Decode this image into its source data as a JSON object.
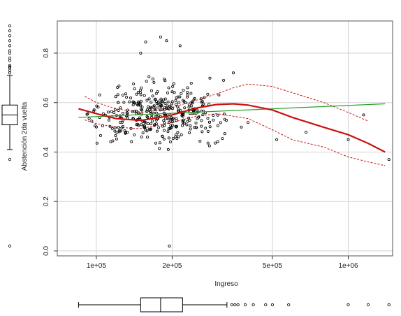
{
  "chart_data": {
    "type": "scatter",
    "title": "",
    "xlabel": "Ingreso",
    "ylabel": "Abstención 2da vuelta",
    "x_scale": "log",
    "xlim": [
      70000,
      1500000
    ],
    "ylim": [
      -0.02,
      0.93
    ],
    "x_ticks": [
      100000,
      200000,
      500000,
      1000000
    ],
    "x_tick_labels": [
      "1e+05",
      "2e+05",
      "5e+05",
      "1e+06"
    ],
    "y_ticks": [
      0.0,
      0.2,
      0.4,
      0.6,
      0.8
    ],
    "y_tick_labels": [
      "0.0",
      "0.2",
      "0.4",
      "0.6",
      "0.8"
    ],
    "grid": true,
    "colors": {
      "points": "#000000",
      "linear_fit": "#2ca02c",
      "smooth_fit": "#cc1111",
      "smooth_band": "#cc1111",
      "grid": "#d3d3d3"
    },
    "series": [
      {
        "type": "line",
        "x": [
          85000,
          1400000
        ],
        "y": [
          0.54,
          0.595
        ]
      },
      {
        "type": "line",
        "x": [
          85000,
          100000,
          120000,
          150000,
          180000,
          200000,
          250000,
          300000,
          350000,
          400000,
          500000,
          600000,
          800000,
          1000000,
          1200000,
          1400000
        ],
        "y": [
          0.575,
          0.555,
          0.535,
          0.528,
          0.54,
          0.55,
          0.578,
          0.592,
          0.595,
          0.59,
          0.57,
          0.54,
          0.5,
          0.47,
          0.435,
          0.4
        ]
      },
      {
        "type": "line",
        "x": [
          90000,
          100000,
          120000,
          150000,
          180000,
          200000,
          250000,
          300000,
          350000,
          400000,
          500000,
          600000,
          800000,
          1000000,
          1200000
        ],
        "y": [
          0.625,
          0.6,
          0.575,
          0.56,
          0.57,
          0.58,
          0.61,
          0.635,
          0.66,
          0.675,
          0.665,
          0.64,
          0.6,
          0.56,
          0.525
        ]
      },
      {
        "type": "line",
        "x": [
          90000,
          100000,
          120000,
          150000,
          180000,
          200000,
          250000,
          300000,
          350000,
          400000,
          500000,
          600000,
          800000,
          1000000,
          1200000,
          1400000
        ],
        "y": [
          0.53,
          0.515,
          0.5,
          0.495,
          0.51,
          0.52,
          0.545,
          0.555,
          0.545,
          0.535,
          0.49,
          0.45,
          0.42,
          0.38,
          0.36,
          0.345
        ]
      }
    ],
    "outlier_points": [
      {
        "x": 150000,
        "y": 0.8
      },
      {
        "x": 157000,
        "y": 0.845
      },
      {
        "x": 180000,
        "y": 0.865
      },
      {
        "x": 190000,
        "y": 0.85
      },
      {
        "x": 215000,
        "y": 0.83
      },
      {
        "x": 195000,
        "y": 0.02
      },
      {
        "x": 193000,
        "y": 0.41
      },
      {
        "x": 1000000,
        "y": 0.45
      },
      {
        "x": 1150000,
        "y": 0.55
      },
      {
        "x": 1450000,
        "y": 0.37
      },
      {
        "x": 680000,
        "y": 0.48
      },
      {
        "x": 520000,
        "y": 0.45
      },
      {
        "x": 350000,
        "y": 0.72
      },
      {
        "x": 320000,
        "y": 0.69
      }
    ],
    "y_boxplot": {
      "q1": 0.51,
      "median": 0.55,
      "q3": 0.59,
      "whisker_low": 0.41,
      "whisker_high": 0.71,
      "outliers": [
        0.72,
        0.73,
        0.74,
        0.745,
        0.75,
        0.77,
        0.78,
        0.8,
        0.81,
        0.83,
        0.85,
        0.87,
        0.89,
        0.91,
        0.37,
        0.02
      ]
    },
    "x_boxplot": {
      "q1": 150000,
      "median": 180000,
      "q3": 220000,
      "whisker_low": 85000,
      "whisker_high": 330000,
      "outliers": [
        345000,
        355000,
        365000,
        390000,
        420000,
        470000,
        500000,
        580000,
        1000000,
        1200000,
        1450000
      ]
    }
  }
}
